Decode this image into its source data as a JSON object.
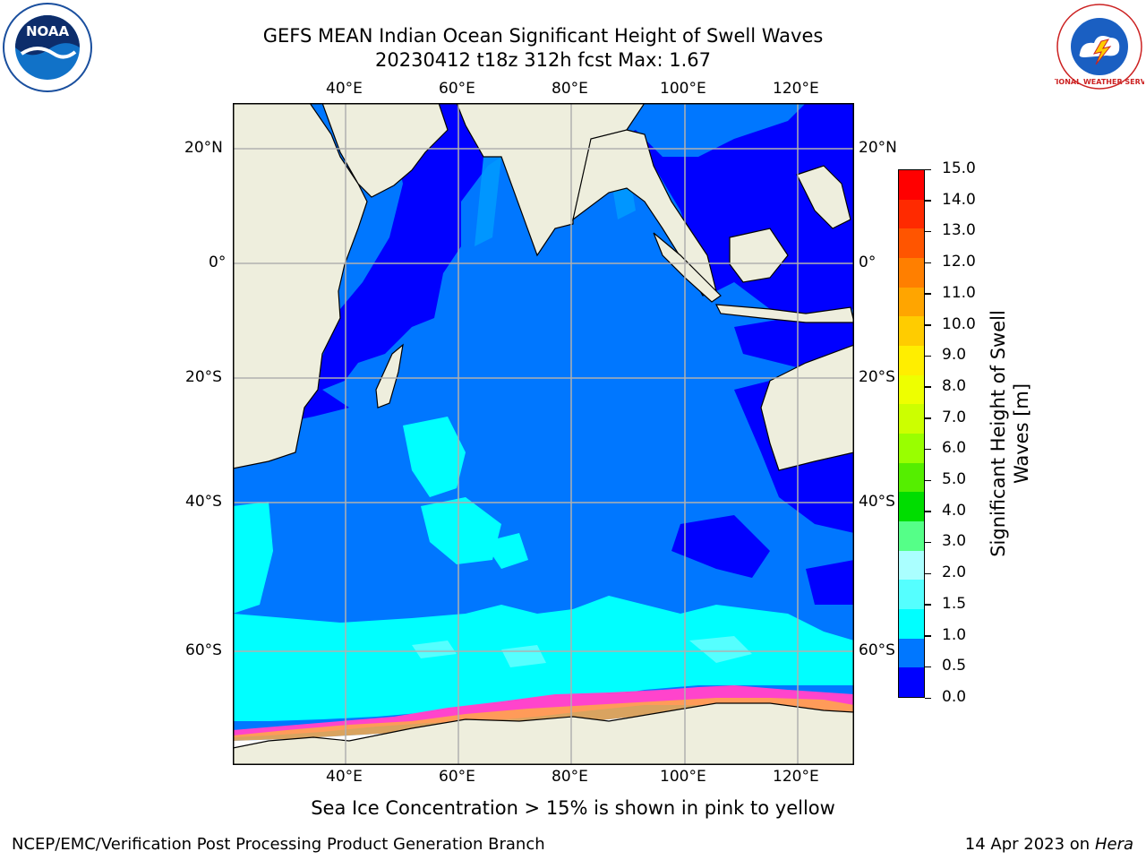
{
  "title_line1": "GEFS MEAN Indian Ocean Significant Height of Swell Waves",
  "title_line2": "20230412 t18z 312h fcst   Max: 1.67",
  "lon_labels": [
    "40°E",
    "60°E",
    "80°E",
    "100°E",
    "120°E"
  ],
  "lat_labels": [
    "20°N",
    "0°",
    "20°S",
    "40°S",
    "60°S"
  ],
  "colorbar": {
    "label_line1": "Significant Height of Swell",
    "label_line2": "Waves [m]",
    "ticks": [
      "15.0",
      "14.0",
      "13.0",
      "12.0",
      "11.0",
      "10.0",
      "9.0",
      "8.0",
      "7.0",
      "6.0",
      "5.0",
      "4.0",
      "3.0",
      "2.0",
      "1.5",
      "1.0",
      "0.5",
      "0.0"
    ],
    "colors": [
      "#ff0000",
      "#ff2a00",
      "#ff5500",
      "#ff7f00",
      "#ffa500",
      "#ffcc00",
      "#ffee00",
      "#eeff00",
      "#ccff00",
      "#99ff00",
      "#55ee00",
      "#00dd00",
      "#55ff88",
      "#aaffff",
      "#55ffff",
      "#00ffff",
      "#0077ff",
      "#0000ff"
    ]
  },
  "note": "Sea Ice Concentration > 15% is shown in pink to yellow",
  "footer_left": "NCEP/EMC/Verification Post Processing Product Generation Branch",
  "footer_right_prefix": "14 Apr 2023 on ",
  "footer_right_host": "Hera",
  "logos": {
    "noaa_text": "NOAA",
    "nws_text": "NATIONAL WEATHER SERVICE"
  },
  "palette": {
    "deep_blue": "#0000ff",
    "mid_blue": "#0077ff",
    "cyan": "#00ffff",
    "land": "#eeeedd",
    "ice_pink": "#ff44cc"
  }
}
